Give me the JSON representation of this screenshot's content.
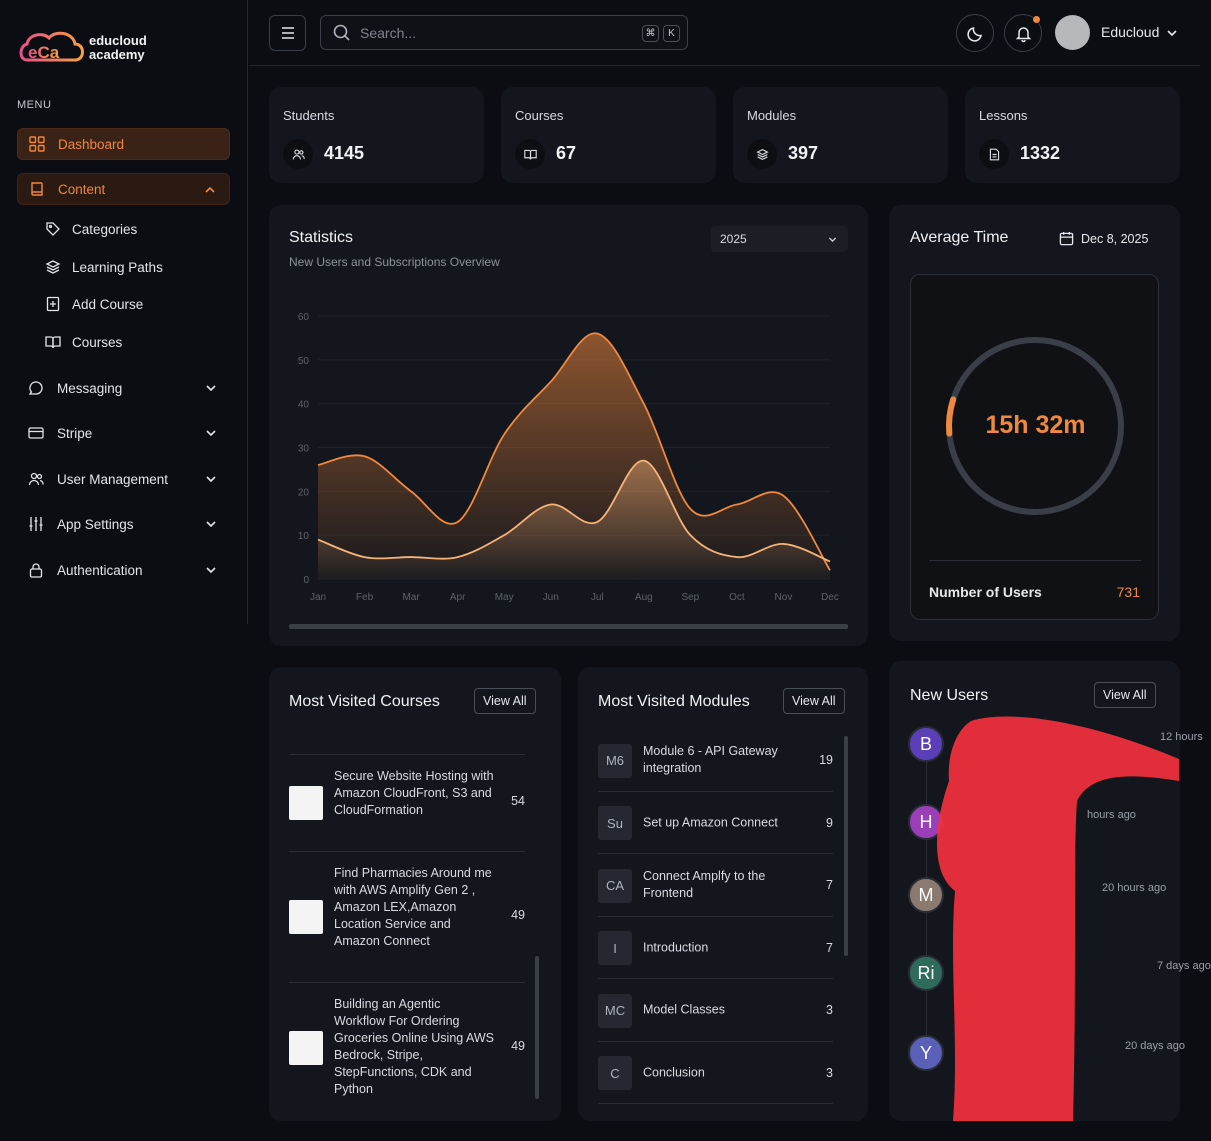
{
  "app": {
    "brand_line1": "educloud",
    "brand_line2": "academy",
    "logo_icon": "eca-logo"
  },
  "sidebar": {
    "menu_label": "MENU",
    "items": [
      {
        "label": "Dashboard",
        "icon": "grid-icon",
        "state": "active"
      },
      {
        "label": "Content",
        "icon": "book-icon",
        "state": "open"
      },
      {
        "label": "Messaging",
        "icon": "chat-icon"
      },
      {
        "label": "Stripe",
        "icon": "card-icon"
      },
      {
        "label": "User Management",
        "icon": "users-icon"
      },
      {
        "label": "App Settings",
        "icon": "sliders-icon"
      },
      {
        "label": "Authentication",
        "icon": "lock-icon"
      }
    ],
    "content_sub": [
      {
        "label": "Categories",
        "icon": "tag-icon"
      },
      {
        "label": "Learning Paths",
        "icon": "layers-icon"
      },
      {
        "label": "Add Course",
        "icon": "add-file-icon"
      },
      {
        "label": "Courses",
        "icon": "open-book-icon"
      }
    ]
  },
  "header": {
    "search_placeholder": "Search...",
    "kbd1": "⌘",
    "kbd2": "K",
    "user_name": "Educloud"
  },
  "stats": [
    {
      "label": "Students",
      "value": "4145",
      "icon": "users-icon"
    },
    {
      "label": "Courses",
      "value": "67",
      "icon": "book-icon"
    },
    {
      "label": "Modules",
      "value": "397",
      "icon": "layers-icon"
    },
    {
      "label": "Lessons",
      "value": "1332",
      "icon": "file-icon"
    }
  ],
  "statistics": {
    "title": "Statistics",
    "subtitle": "New Users and Subscriptions Overview",
    "year": "2025"
  },
  "chart_data": {
    "type": "area",
    "categories": [
      "Jan",
      "Feb",
      "Mar",
      "Apr",
      "May",
      "Jun",
      "Jul",
      "Aug",
      "Sep",
      "Oct",
      "Nov",
      "Dec"
    ],
    "series": [
      {
        "values": [
          26,
          28,
          20,
          13,
          33,
          45,
          56,
          40,
          16,
          17,
          19,
          2
        ],
        "color": "#f0883e"
      },
      {
        "values": [
          9,
          5,
          5,
          5,
          10,
          17,
          13,
          27,
          10,
          5,
          8,
          4
        ],
        "color": "#f5b37a"
      }
    ],
    "ylim": [
      0,
      60
    ],
    "yticks": [
      "0",
      "10",
      "20",
      "30",
      "40",
      "50",
      "60"
    ],
    "grid": true,
    "legend": "none"
  },
  "average_time": {
    "title": "Average Time",
    "date": "Dec 8, 2025",
    "value": "15h 32m",
    "progress": 0.04,
    "users_label": "Number of Users",
    "users_value": "731"
  },
  "most_visited_courses": {
    "title": "Most Visited Courses",
    "view_all": "View All",
    "items": [
      {
        "title": "Secure Website Hosting with Amazon CloudFront, S3 and CloudFormation",
        "count": "54"
      },
      {
        "title": "Find Pharmacies Around me with AWS Amplify Gen 2 , Amazon LEX,Amazon Location Service and Amazon Connect",
        "count": "49"
      },
      {
        "title": "Building an Agentic Workflow For Ordering Groceries Online Using AWS Bedrock, Stripe, StepFunctions, CDK and Python",
        "count": "49"
      }
    ]
  },
  "most_visited_modules": {
    "title": "Most Visited Modules",
    "view_all": "View All",
    "items": [
      {
        "badge": "M6",
        "title": "Module 6 - API Gateway integration",
        "count": "19"
      },
      {
        "badge": "Su",
        "title": "Set up Amazon Connect",
        "count": "9"
      },
      {
        "badge": "CA",
        "title": "Connect Amplfy to the Frontend",
        "count": "7"
      },
      {
        "badge": "I",
        "title": "Introduction",
        "count": "7"
      },
      {
        "badge": "MC",
        "title": "Model Classes",
        "count": "3"
      },
      {
        "badge": "C",
        "title": "Conclusion",
        "count": "3"
      }
    ]
  },
  "new_users": {
    "title": "New Users",
    "view_all": "View All",
    "items": [
      {
        "initial": "B",
        "color": "#5b3fb8",
        "time": "12 hours"
      },
      {
        "initial": "H",
        "color": "#9b3fb8",
        "time": "hours ago"
      },
      {
        "initial": "M",
        "color": "#8a7a70",
        "time": "20 hours ago"
      },
      {
        "initial": "Ri",
        "color": "#2f6b5a",
        "time": "7 days ago"
      },
      {
        "initial": "Y",
        "color": "#5a5fb8",
        "time": "20 days ago"
      }
    ]
  }
}
